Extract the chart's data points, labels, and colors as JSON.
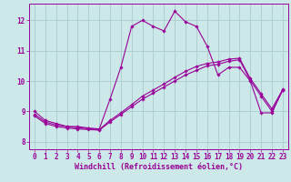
{
  "background_color": "#cce8e8",
  "grid_color": "#aacccc",
  "line_color": "#990099",
  "marker": "D",
  "markersize": 1.8,
  "linewidth": 0.8,
  "xlabel": "Windchill (Refroidissement éolien,°C)",
  "xlabel_fontsize": 6.0,
  "tick_fontsize": 5.5,
  "xlim": [
    -0.5,
    23.5
  ],
  "ylim": [
    7.75,
    12.55
  ],
  "yticks": [
    8,
    9,
    10,
    11,
    12
  ],
  "xticks": [
    0,
    1,
    2,
    3,
    4,
    5,
    6,
    7,
    8,
    9,
    10,
    11,
    12,
    13,
    14,
    15,
    16,
    17,
    18,
    19,
    20,
    21,
    22,
    23
  ],
  "series": [
    {
      "x": [
        0,
        1,
        2,
        3,
        4,
        5,
        6,
        7,
        8,
        9,
        10,
        11,
        12,
        13,
        14,
        15,
        16,
        17,
        18,
        19,
        20,
        21,
        22,
        23
      ],
      "y": [
        9.0,
        8.7,
        8.6,
        8.5,
        8.5,
        8.45,
        8.42,
        9.4,
        10.45,
        11.8,
        12.0,
        11.8,
        11.65,
        12.3,
        11.95,
        11.8,
        11.15,
        10.2,
        10.45,
        10.45,
        10.0,
        8.95,
        8.95,
        9.7
      ]
    },
    {
      "x": [
        0,
        1,
        2,
        3,
        4,
        5,
        6,
        7,
        8,
        9,
        10,
        11,
        12,
        13,
        14,
        15,
        16,
        17,
        18,
        19,
        20,
        21,
        22,
        23
      ],
      "y": [
        8.85,
        8.6,
        8.5,
        8.45,
        8.42,
        8.4,
        8.38,
        8.65,
        8.9,
        9.15,
        9.4,
        9.6,
        9.8,
        10.0,
        10.2,
        10.35,
        10.5,
        10.55,
        10.65,
        10.7,
        10.02,
        9.5,
        9.0,
        9.7
      ]
    },
    {
      "x": [
        0,
        1,
        2,
        3,
        4,
        5,
        6,
        7,
        8,
        9,
        10,
        11,
        12,
        13,
        14,
        15,
        16,
        17,
        18,
        19,
        20,
        21,
        22,
        23
      ],
      "y": [
        8.9,
        8.65,
        8.55,
        8.5,
        8.46,
        8.43,
        8.4,
        8.7,
        8.95,
        9.22,
        9.5,
        9.7,
        9.9,
        10.12,
        10.32,
        10.48,
        10.58,
        10.63,
        10.72,
        10.75,
        10.08,
        9.58,
        9.08,
        9.72
      ]
    }
  ]
}
